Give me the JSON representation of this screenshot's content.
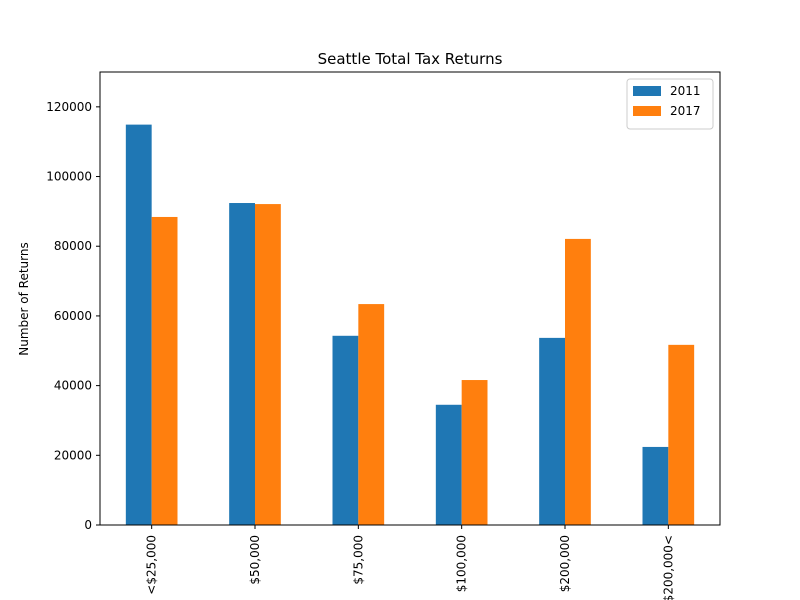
{
  "chart_data": {
    "type": "bar",
    "title": "Seattle Total Tax Returns",
    "xlabel": "",
    "ylabel": "Number of Returns",
    "categories": [
      "<$25,000",
      "$50,000",
      "$75,000",
      "$100,000",
      "$200,000",
      "$200,000<"
    ],
    "series": [
      {
        "name": "2011",
        "color": "#1f77b4",
        "values": [
          114900,
          92400,
          54300,
          34500,
          53700,
          22400
        ]
      },
      {
        "name": "2017",
        "color": "#ff7f0e",
        "values": [
          88400,
          92100,
          63400,
          41600,
          82100,
          51700
        ]
      }
    ],
    "ylim": [
      0,
      130000
    ],
    "yticks": [
      0,
      20000,
      40000,
      60000,
      80000,
      100000,
      120000
    ],
    "grid": false,
    "legend_position": "top-right"
  }
}
